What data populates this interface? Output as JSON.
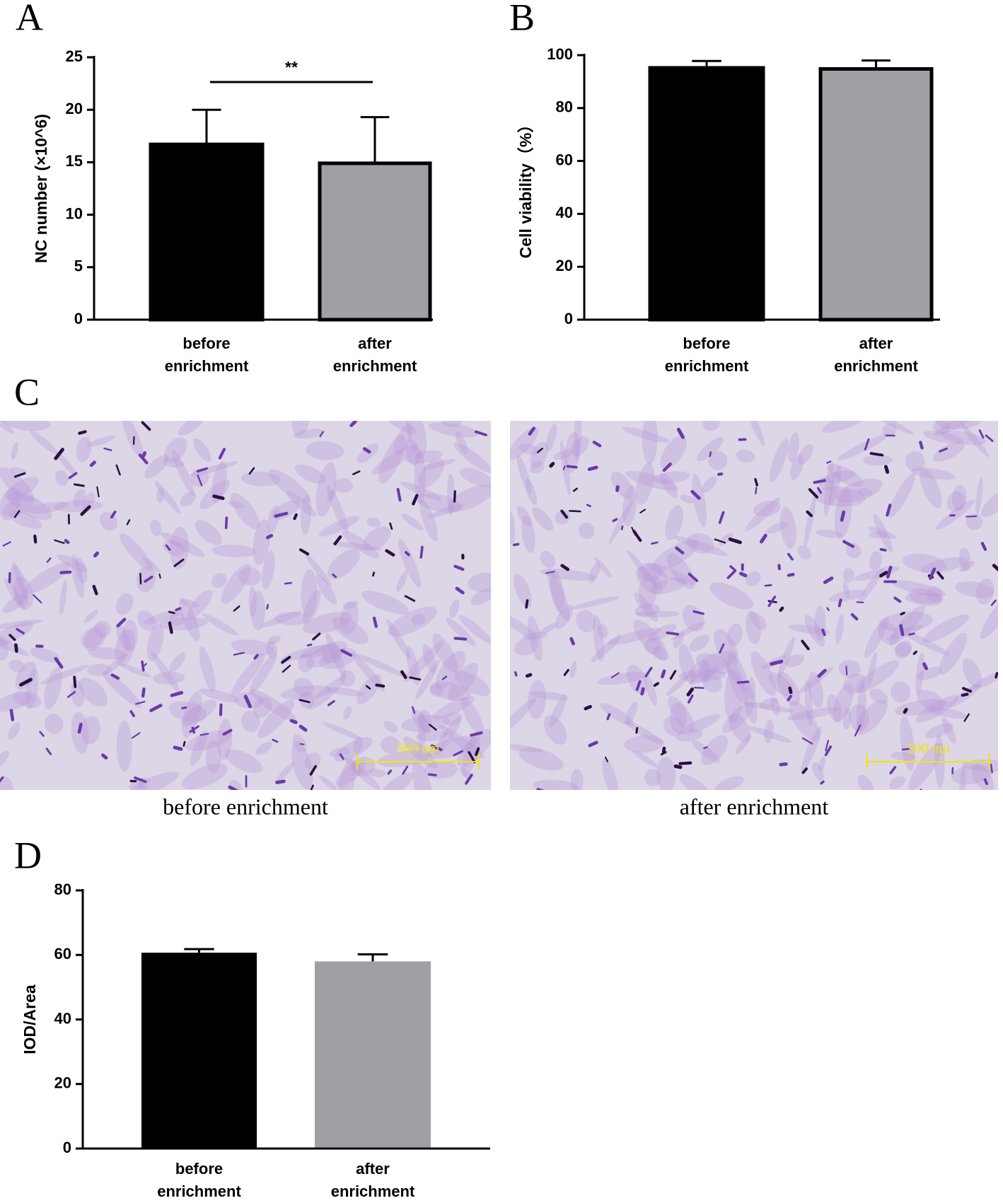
{
  "panel_labels": [
    "A",
    "B",
    "C",
    "D"
  ],
  "chart_data": [
    {
      "type": "bar",
      "y_label": "NC number (×10^6)",
      "categories": [
        "before enrichment",
        "after enrichment"
      ],
      "values": [
        16.7,
        14.9
      ],
      "errors": [
        3.3,
        4.4
      ],
      "colors": [
        "#000000",
        "#a0a0a4"
      ],
      "edgecolor": "#000000",
      "ylim": [
        0,
        25
      ],
      "yticks": [
        0,
        5,
        10,
        15,
        20,
        25
      ],
      "significance": "**"
    },
    {
      "type": "bar",
      "y_label": "Cell viability（%）",
      "categories": [
        "before enrichment",
        "after enrichment"
      ],
      "values": [
        95.2,
        94.8
      ],
      "errors": [
        2.6,
        3.2
      ],
      "colors": [
        "#000000",
        "#a0a0a4"
      ],
      "edgecolor": "#000000",
      "ylim": [
        0,
        100
      ],
      "yticks": [
        0,
        20,
        40,
        60,
        80,
        100
      ]
    },
    {
      "type": "bar",
      "y_label": "IOD/Area",
      "categories": [
        "before enrichment",
        "after enrichment"
      ],
      "values": [
        60.7,
        58.0
      ],
      "errors": [
        1.1,
        2.2
      ],
      "colors": [
        "#000000",
        "#a0a0a4"
      ],
      "ylim": [
        0,
        80
      ],
      "yticks": [
        0,
        20,
        40,
        60,
        80
      ]
    }
  ],
  "micrographs": [
    {
      "caption": "before enrichment",
      "scale_bar": "500 um"
    },
    {
      "caption": "after enrichment",
      "scale_bar": "500 um"
    }
  ]
}
